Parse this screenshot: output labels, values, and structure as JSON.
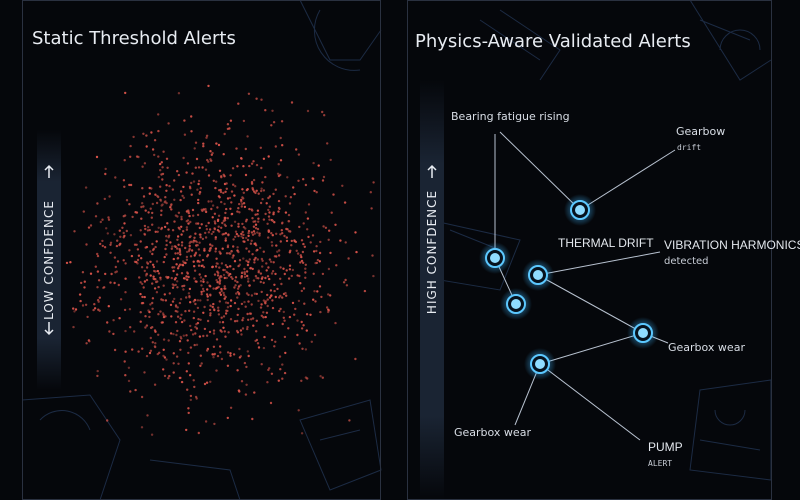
{
  "left": {
    "title": "Static Threshold Alerts",
    "axis_label": "LOW CONFDENCE"
  },
  "right": {
    "title": "Physics-Aware Validated Alerts",
    "axis_label": "HIGH CONFDENCE",
    "labels": [
      {
        "text": "Bearing fatigue rising"
      },
      {
        "text": "Gearbow",
        "sub": "drift"
      },
      {
        "text": "THERMAL DRIFT"
      },
      {
        "text": "VIBRATION HARMONICS",
        "sub": "detected"
      },
      {
        "text": "Gearbox wear"
      },
      {
        "text": "Gearbox wear"
      },
      {
        "text": "PUMP",
        "sub": "ALERT"
      }
    ]
  }
}
